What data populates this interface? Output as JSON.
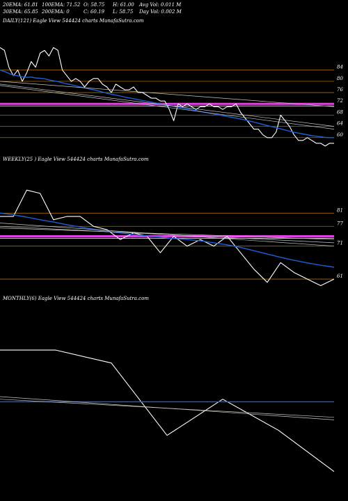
{
  "header": {
    "row1": [
      "20EMA: 61.81",
      "100EMA: 71.52",
      "O: 58.75",
      "H: 61.00",
      "Avg Vol: 0.011  M"
    ],
    "row2": [
      "30EMA: 65.85",
      "200EMA: 0",
      "C: 60.19",
      "L: 58.75",
      "Day Vol: 0.002  M"
    ]
  },
  "colors": {
    "price": "#ffffff",
    "ema": "#1e5fd6",
    "ma": "#c8c8c8",
    "level": "#a86a10",
    "highlight": "#e040e0",
    "bg": "#000000"
  },
  "chart_data": [
    {
      "type": "line",
      "label": "DAILY(121) Eagle  View  544424  charts MunafaSutra.com",
      "ylim": [
        55,
        99
      ],
      "ticks": [
        84,
        80,
        76,
        72,
        68,
        64,
        60
      ],
      "levels": [
        84,
        80,
        76,
        72,
        68,
        64,
        60
      ],
      "highlight": [
        72
      ],
      "series": [
        {
          "role": "price",
          "values": [
            92,
            91,
            85,
            82,
            84,
            80,
            83,
            87,
            85,
            90,
            91,
            89,
            92,
            91,
            84,
            82,
            80,
            81,
            80,
            78,
            80,
            81,
            81,
            79,
            78,
            76,
            79,
            78,
            77,
            77,
            78,
            76,
            76,
            75,
            74,
            74,
            73,
            73,
            70,
            66,
            72,
            71,
            72,
            71,
            70,
            71,
            71,
            72,
            71,
            71,
            70,
            71,
            71,
            72,
            69,
            67,
            65,
            63,
            63,
            61,
            60,
            60,
            62,
            68,
            66,
            64,
            61,
            59,
            59,
            60,
            59,
            58,
            58,
            57,
            58,
            58
          ]
        },
        {
          "role": "ema",
          "values": [
            84,
            83.5,
            82.8,
            82.2,
            82,
            81.6,
            81.4,
            81.5,
            81.2,
            81.1,
            80.9,
            80.5,
            80.2,
            79.9,
            79.5,
            79.1,
            78.8,
            78.4,
            78,
            77.7,
            77.3,
            77,
            76.6,
            76.2,
            75.8,
            75.4,
            75.1,
            74.8,
            74.4,
            74.1,
            73.8,
            73.5,
            73.2,
            72.9,
            72.6,
            72.3,
            72,
            71.7,
            71.4,
            71.1,
            70.8,
            70.5,
            70.2,
            69.9,
            69.6,
            69.3,
            69,
            68.7,
            68.4,
            68.1,
            67.8,
            67.5,
            67.2,
            66.9,
            66.6,
            66.3,
            65.9,
            65.5,
            65.1,
            64.7,
            64.3,
            63.9,
            63.5,
            63.1,
            62.7,
            62.3,
            61.9,
            61.6,
            61.3,
            61,
            60.7,
            60.5,
            60.3,
            60.1,
            60,
            60
          ]
        },
        {
          "role": "ma",
          "values": [
            80,
            71
          ]
        },
        {
          "role": "ma",
          "values": [
            79,
            64
          ]
        },
        {
          "role": "ma",
          "values": [
            78.5,
            63
          ]
        }
      ]
    },
    {
      "type": "line",
      "label": "WEEKLY(25                    ) Eagle  View  544424  charts MunafaSutra.com",
      "ylim": [
        57,
        95
      ],
      "ticks": [
        81,
        77,
        71,
        61
      ],
      "levels": [
        81,
        77,
        71,
        61
      ],
      "highlight": [
        74
      ],
      "series": [
        {
          "role": "price",
          "values": [
            80,
            80,
            88,
            87,
            79,
            80,
            80,
            77,
            76,
            73,
            75,
            74,
            69,
            74,
            71,
            73,
            71,
            74,
            69,
            64,
            60,
            66,
            63,
            61,
            59,
            61
          ]
        },
        {
          "role": "ema",
          "values": [
            81,
            80.5,
            79.8,
            79,
            78.3,
            77.5,
            76.8,
            76.1,
            75.5,
            75,
            74.5,
            74.1,
            73.7,
            73.3,
            73,
            72.6,
            72,
            71.4,
            70.6,
            69.6,
            68.6,
            67.6,
            66.7,
            65.9,
            65.2,
            64.6
          ]
        },
        {
          "role": "ma",
          "values": [
            78,
            71
          ]
        },
        {
          "role": "ma",
          "values": [
            77,
            72
          ]
        },
        {
          "role": "ma",
          "values": [
            76.5,
            73
          ]
        }
      ]
    },
    {
      "type": "line",
      "label": "MONTHLY(6) Eagle  View  544424  charts MunafaSutra.com",
      "ylim": [
        50,
        120
      ],
      "ticks": [],
      "levels": [],
      "highlight": [],
      "series": [
        {
          "role": "price",
          "values": [
            103,
            103,
            98,
            70,
            84,
            72,
            56
          ]
        },
        {
          "role": "ema",
          "values": [
            83,
            83
          ]
        },
        {
          "role": "ma",
          "values": [
            85,
            76
          ]
        },
        {
          "role": "ma",
          "values": [
            84,
            77
          ]
        }
      ]
    }
  ]
}
